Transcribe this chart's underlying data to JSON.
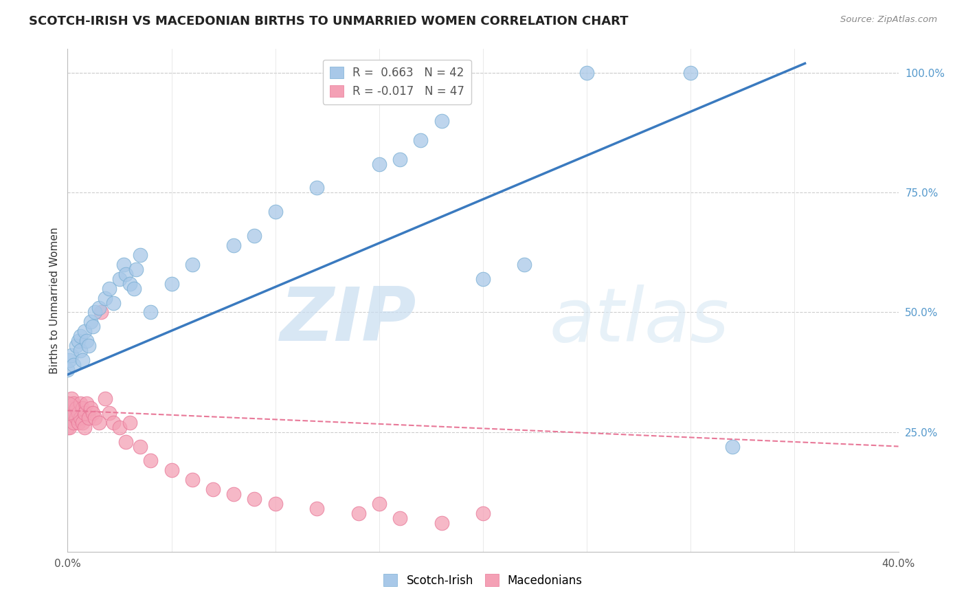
{
  "title": "SCOTCH-IRISH VS MACEDONIAN BIRTHS TO UNMARRIED WOMEN CORRELATION CHART",
  "source": "Source: ZipAtlas.com",
  "ylabel": "Births to Unmarried Women",
  "xlim": [
    0.0,
    0.4
  ],
  "ylim": [
    0.0,
    1.05
  ],
  "scotch_irish_R": 0.663,
  "scotch_irish_N": 42,
  "macedonian_R": -0.017,
  "macedonian_N": 47,
  "scotch_irish_color": "#a8c8e8",
  "macedonian_color": "#f4a0b5",
  "scotch_irish_edge_color": "#7aafd4",
  "macedonian_edge_color": "#e87898",
  "scotch_irish_line_color": "#3a7abf",
  "macedonian_line_color": "#e87898",
  "watermark_zip": "ZIP",
  "watermark_atlas": "atlas",
  "si_x": [
    0.0,
    0.001,
    0.002,
    0.003,
    0.004,
    0.005,
    0.006,
    0.006,
    0.007,
    0.008,
    0.009,
    0.01,
    0.011,
    0.012,
    0.013,
    0.015,
    0.018,
    0.02,
    0.022,
    0.025,
    0.027,
    0.028,
    0.03,
    0.032,
    0.033,
    0.035,
    0.04,
    0.05,
    0.06,
    0.08,
    0.09,
    0.1,
    0.12,
    0.15,
    0.16,
    0.17,
    0.18,
    0.2,
    0.22,
    0.25,
    0.3,
    0.32
  ],
  "si_y": [
    0.38,
    0.4,
    0.41,
    0.39,
    0.43,
    0.44,
    0.42,
    0.45,
    0.4,
    0.46,
    0.44,
    0.43,
    0.48,
    0.47,
    0.5,
    0.51,
    0.53,
    0.55,
    0.52,
    0.57,
    0.6,
    0.58,
    0.56,
    0.55,
    0.59,
    0.62,
    0.5,
    0.56,
    0.6,
    0.64,
    0.66,
    0.71,
    0.76,
    0.81,
    0.82,
    0.86,
    0.9,
    0.57,
    0.6,
    1.0,
    1.0,
    0.22
  ],
  "mac_x": [
    0.0,
    0.0,
    0.0,
    0.001,
    0.001,
    0.001,
    0.002,
    0.002,
    0.003,
    0.003,
    0.004,
    0.004,
    0.005,
    0.005,
    0.006,
    0.006,
    0.007,
    0.007,
    0.008,
    0.008,
    0.009,
    0.01,
    0.011,
    0.012,
    0.013,
    0.015,
    0.016,
    0.018,
    0.02,
    0.022,
    0.025,
    0.028,
    0.03,
    0.035,
    0.04,
    0.05,
    0.06,
    0.07,
    0.08,
    0.09,
    0.1,
    0.12,
    0.14,
    0.15,
    0.16,
    0.18,
    0.2
  ],
  "mac_y": [
    0.31,
    0.28,
    0.26,
    0.3,
    0.28,
    0.26,
    0.32,
    0.29,
    0.31,
    0.27,
    0.3,
    0.28,
    0.29,
    0.27,
    0.31,
    0.28,
    0.3,
    0.27,
    0.29,
    0.26,
    0.31,
    0.28,
    0.3,
    0.29,
    0.28,
    0.27,
    0.5,
    0.32,
    0.29,
    0.27,
    0.26,
    0.23,
    0.27,
    0.22,
    0.19,
    0.17,
    0.15,
    0.13,
    0.12,
    0.11,
    0.1,
    0.09,
    0.08,
    0.1,
    0.07,
    0.06,
    0.08
  ],
  "si_line_x0": 0.0,
  "si_line_y0": 0.37,
  "si_line_x1": 0.355,
  "si_line_y1": 1.02,
  "mac_line_x0": 0.0,
  "mac_line_y0": 0.295,
  "mac_line_x1": 0.4,
  "mac_line_y1": 0.22
}
